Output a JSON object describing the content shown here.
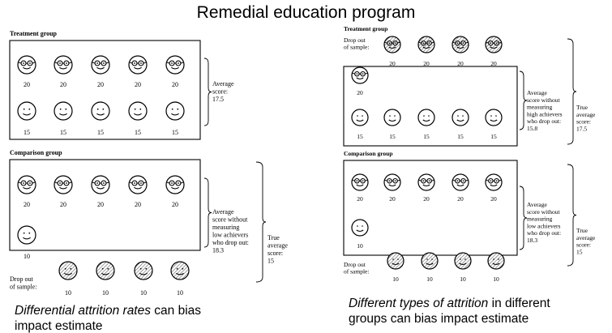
{
  "title": "Remedial education program",
  "left": {
    "treatment_label": "Treatment group",
    "comparison_label": "Comparison group",
    "t_high": [
      "20",
      "20",
      "20",
      "20",
      "20"
    ],
    "t_low": [
      "15",
      "15",
      "15",
      "15",
      "15"
    ],
    "t_note": [
      "Average",
      "score:",
      "17.5"
    ],
    "c_high": [
      "20",
      "20",
      "20",
      "20",
      "20"
    ],
    "c_low_in": [
      "10"
    ],
    "c_drop": [
      "10",
      "10",
      "10",
      "10"
    ],
    "c_note": [
      "Average",
      "score without",
      "measuring",
      "low achievers",
      "who drop out:",
      "18.3"
    ],
    "c_true": [
      "True",
      "average",
      "score:",
      "15"
    ],
    "drop_label": [
      "Drop out",
      "of sample:"
    ],
    "caption_italic": "Differential attrition rates",
    "caption_rest_1": " can bias",
    "caption_line_2": "impact estimate"
  },
  "right": {
    "treatment_label": "Treatment group",
    "comparison_label": "Comparison group",
    "t_drop": [
      "20",
      "20",
      "20",
      "20"
    ],
    "t_high_in": [
      "20"
    ],
    "t_low": [
      "15",
      "15",
      "15",
      "15",
      "15"
    ],
    "t_note": [
      "Average",
      "score without",
      "measuring",
      "high achievers",
      "who drop out:",
      "15.8"
    ],
    "t_true": [
      "True",
      "average",
      "score:",
      "17.5"
    ],
    "c_high": [
      "20",
      "20",
      "20",
      "20",
      "20"
    ],
    "c_low_in": [
      "10"
    ],
    "c_drop": [
      "10",
      "10",
      "10",
      "10"
    ],
    "c_note": [
      "Average",
      "score without",
      "measuring",
      "low achievers",
      "who drop out:",
      "18.3"
    ],
    "c_true": [
      "True",
      "average",
      "score:",
      "15"
    ],
    "drop_label": [
      "Drop out",
      "of sample:"
    ],
    "caption_italic": "Different types of attrition",
    "caption_rest_1": " in different",
    "caption_line_2": "groups can bias impact estimate"
  }
}
